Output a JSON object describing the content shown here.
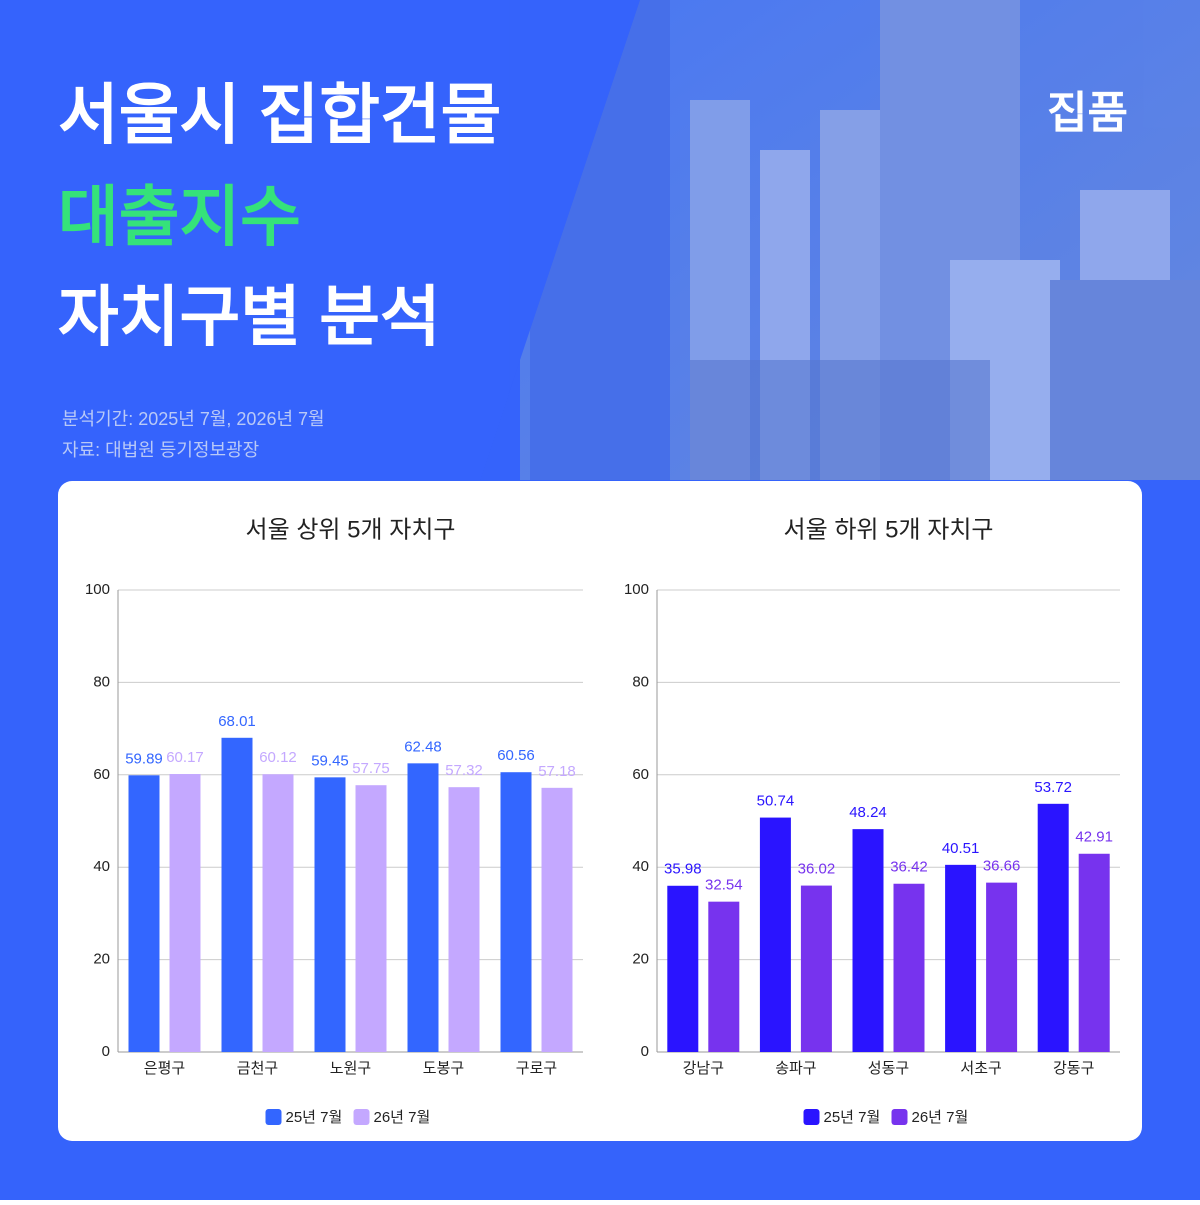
{
  "header": {
    "title_line1": "서울시 집합건물",
    "title_line2": "대출지수",
    "title_line3": "자치구별 분석",
    "brand": "집품",
    "period": "분석기간: 2025년 7월, 2026년 7월",
    "source": "자료: 대법원 등기정보광장"
  },
  "chart_data": [
    {
      "type": "bar",
      "title": "서울 상위 5개 자치구",
      "categories": [
        "은평구",
        "금천구",
        "노원구",
        "도봉구",
        "구로구"
      ],
      "series": [
        {
          "name": "25년 7월",
          "color": "#3366ff",
          "values": [
            59.89,
            68.01,
            59.45,
            62.48,
            60.56
          ]
        },
        {
          "name": "26년 7월",
          "color": "#c4a8ff",
          "values": [
            60.17,
            60.12,
            57.75,
            57.32,
            57.18
          ]
        }
      ],
      "ylim": [
        0,
        100
      ],
      "yticks": [
        0,
        20,
        40,
        60,
        80,
        100
      ],
      "grid": true,
      "legend": "bottom"
    },
    {
      "type": "bar",
      "title": "서울 하위 5개 자치구",
      "categories": [
        "강남구",
        "송파구",
        "성동구",
        "서초구",
        "강동구"
      ],
      "series": [
        {
          "name": "25년 7월",
          "color": "#2a14ff",
          "values": [
            35.98,
            50.74,
            48.24,
            40.51,
            53.72
          ]
        },
        {
          "name": "26년 7월",
          "color": "#7733ee",
          "values": [
            32.54,
            36.02,
            36.42,
            36.66,
            42.91
          ]
        }
      ],
      "ylim": [
        0,
        100
      ],
      "yticks": [
        0,
        20,
        40,
        60,
        80,
        100
      ],
      "grid": true,
      "legend": "bottom"
    }
  ]
}
